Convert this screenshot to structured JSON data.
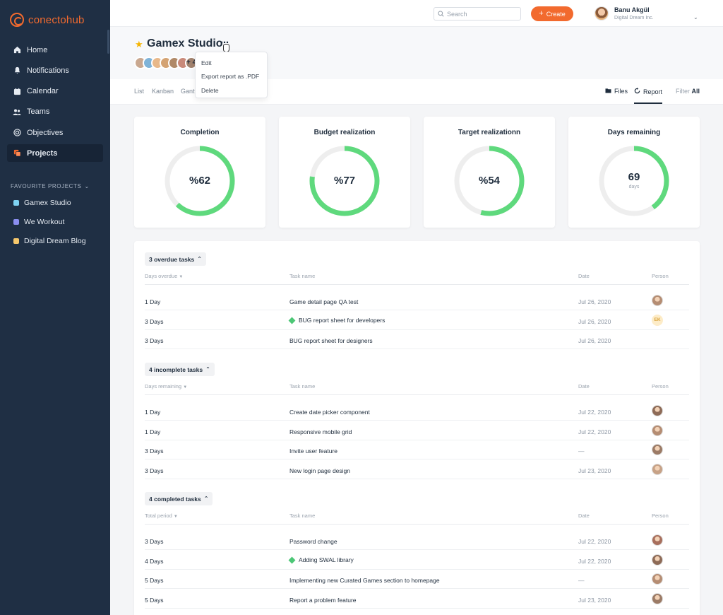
{
  "app": {
    "logo_text": "conectohub"
  },
  "sidebar": {
    "items": [
      {
        "label": "Home",
        "icon": "home-icon"
      },
      {
        "label": "Notifications",
        "icon": "bell-icon"
      },
      {
        "label": "Calendar",
        "icon": "calendar-icon"
      },
      {
        "label": "Teams",
        "icon": "teams-icon"
      },
      {
        "label": "Objectives",
        "icon": "target-icon"
      },
      {
        "label": "Projects",
        "icon": "projects-icon",
        "active": true
      }
    ],
    "favourites_title": "FAVOURITE PROJECTS",
    "favourites": [
      {
        "label": "Gamex Studio",
        "color": "#7fd3f2"
      },
      {
        "label": "We Workout",
        "color": "#8b8ef0"
      },
      {
        "label": "Digital Dream Blog",
        "color": "#f5c76b"
      }
    ]
  },
  "topbar": {
    "search_placeholder": "Search",
    "create_label": "Create",
    "user_name": "Banu Akgül",
    "user_org": "Digital Dream Inc."
  },
  "project": {
    "title": "Gamex Studio",
    "more_members": "+ 4",
    "menu": [
      "Edit",
      "Export report as .PDF",
      "Delete"
    ]
  },
  "tabs": {
    "left": [
      "List",
      "Kanban",
      "Gantt"
    ],
    "files": "Files",
    "report": "Report",
    "filter_label": "Filter",
    "filter_value": "All"
  },
  "cards": [
    {
      "title": "Completion",
      "value": "%62",
      "percent": 62,
      "sub": ""
    },
    {
      "title": "Budget realization",
      "value": "%77",
      "percent": 77,
      "sub": ""
    },
    {
      "title": "Target realizationn",
      "value": "%54",
      "percent": 54,
      "sub": ""
    },
    {
      "title": "Days remaining",
      "value": "69",
      "percent": 40,
      "sub": "days"
    }
  ],
  "colors": {
    "accent": "#f26a2e",
    "progress": "#5fd97d",
    "track": "#eeeeee",
    "sidebar": "#1f2f44"
  },
  "sections": [
    {
      "title": "3 overdue tasks",
      "cols": [
        "Days overdue",
        "Task name",
        "Date",
        "Person"
      ],
      "rows": [
        {
          "d": "1 Day",
          "name": "Game detail page QA test",
          "date": "Jul 26, 2020",
          "person": "avatar",
          "diamond": false
        },
        {
          "d": "3 Days",
          "name": "BUG report sheet for developers",
          "date": "Jul 26, 2020",
          "person": "EK",
          "diamond": true
        },
        {
          "d": "3 Days",
          "name": "BUG report sheet for designers",
          "date": "Jul 26, 2020",
          "person": "",
          "diamond": false
        }
      ]
    },
    {
      "title": "4 incomplete tasks",
      "cols": [
        "Days remaining",
        "Task name",
        "Date",
        "Person"
      ],
      "rows": [
        {
          "d": "1 Day",
          "name": "Create date picker component",
          "date": "Jul 22, 2020",
          "person": "avatar",
          "diamond": false
        },
        {
          "d": "1 Day",
          "name": "Responsive mobile grid",
          "date": "Jul 22, 2020",
          "person": "avatar",
          "diamond": false
        },
        {
          "d": "3 Days",
          "name": "Invite user feature",
          "date": "—",
          "person": "avatar",
          "diamond": false
        },
        {
          "d": "3 Days",
          "name": "New login page design",
          "date": "Jul 23, 2020",
          "person": "avatar",
          "diamond": false
        }
      ]
    },
    {
      "title": "4 completed tasks",
      "cols": [
        "Total period",
        "Task name",
        "Date",
        "Person"
      ],
      "rows": [
        {
          "d": "3 Days",
          "name": "Password change",
          "date": "Jul 22, 2020",
          "person": "avatar",
          "diamond": false
        },
        {
          "d": "4 Days",
          "name": "Adding SWAL library",
          "date": "Jul 22, 2020",
          "person": "avatar",
          "diamond": true
        },
        {
          "d": "5 Days",
          "name": "Implementing new Curated Games section to homepage",
          "date": "—",
          "person": "avatar",
          "diamond": false
        },
        {
          "d": "5 Days",
          "name": "Report a problem feature",
          "date": "Jul 23, 2020",
          "person": "avatar",
          "diamond": false
        }
      ]
    }
  ]
}
